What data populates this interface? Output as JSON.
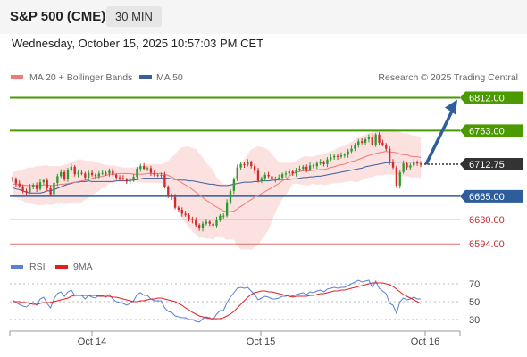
{
  "header": {
    "title": "S&P 500 (CME)",
    "timeframe": "30 MIN"
  },
  "datetime": "Wednesday, October 15, 2025 10:57:03 PM CET",
  "legend": {
    "ma20_label": "MA 20 + Bollinger Bands",
    "ma50_label": "MA 50",
    "credit": "Research © 2025 Trading Central"
  },
  "rsi_legend": {
    "rsi_label": "RSI",
    "ma_label": "9MA"
  },
  "colors": {
    "resistance": "#4a9a00",
    "support": "#2d5d9a",
    "bearish_level": "#e07070",
    "current": "#333333",
    "bull_candle": "#2e9a2e",
    "bear_candle": "#d42a2a",
    "ma20": "#f07a7a",
    "ma50": "#3a5fa0",
    "bollinger": "#fbdcdc",
    "rsi": "#5b7fd6",
    "rsi_ma": "#e02020",
    "arrow": "#2e5f9a"
  },
  "chart_data": [
    {
      "type": "candlestick",
      "x_labels": [
        "Oct 14",
        "Oct 15",
        "Oct 16"
      ],
      "ylim": [
        6585,
        6830
      ],
      "levels": [
        {
          "label": "6812.00",
          "value": 6812,
          "kind": "resistance"
        },
        {
          "label": "6763.00",
          "value": 6763,
          "kind": "resistance"
        },
        {
          "label": "6712.75",
          "value": 6712.75,
          "kind": "current"
        },
        {
          "label": "6665.00",
          "value": 6665,
          "kind": "support"
        },
        {
          "label": "6630.00",
          "value": 6630,
          "kind": "bearish"
        },
        {
          "label": "6594.00",
          "value": 6594,
          "kind": "bearish"
        }
      ],
      "closes": [
        6690,
        6684,
        6680,
        6673,
        6671,
        6679,
        6682,
        6676,
        6686,
        6689,
        6677,
        6668,
        6685,
        6695,
        6701,
        6691,
        6704,
        6709,
        6698,
        6700,
        6699,
        6693,
        6700,
        6697,
        6695,
        6699,
        6700,
        6699,
        6703,
        6697,
        6693,
        6692,
        6690,
        6687,
        6689,
        6694,
        6706,
        6710,
        6706,
        6707,
        6700,
        6697,
        6697,
        6697,
        6679,
        6666,
        6664,
        6648,
        6645,
        6639,
        6637,
        6631,
        6629,
        6622,
        6617,
        6624,
        6627,
        6624,
        6621,
        6630,
        6636,
        6636,
        6656,
        6673,
        6690,
        6708,
        6713,
        6712,
        6716,
        6710,
        6703,
        6688,
        6692,
        6697,
        6695,
        6690,
        6691,
        6693,
        6698,
        6699,
        6702,
        6699,
        6704,
        6706,
        6709,
        6705,
        6711,
        6710,
        6714,
        6716,
        6713,
        6720,
        6723,
        6725,
        6724,
        6726,
        6727,
        6732,
        6736,
        6742,
        6747,
        6745,
        6750,
        6754,
        6742,
        6757,
        6745,
        6742,
        6736,
        6716,
        6708,
        6681,
        6701,
        6714,
        6708,
        6711,
        6716,
        6714,
        6713
      ],
      "ma20": [
        6683,
        6683,
        6682,
        6682,
        6681,
        6681,
        6681,
        6681,
        6681,
        6682,
        6682,
        6681,
        6681,
        6682,
        6683,
        6683,
        6684,
        6685,
        6686,
        6687,
        6688,
        6689,
        6690,
        6692,
        6693,
        6694,
        6695,
        6696,
        6698,
        6698,
        6698,
        6699,
        6699,
        6699,
        6699,
        6698,
        6698,
        6698,
        6698,
        6699,
        6699,
        6699,
        6699,
        6699,
        6698,
        6696,
        6694,
        6691,
        6688,
        6685,
        6682,
        6679,
        6675,
        6671,
        6667,
        6663,
        6659,
        6656,
        6652,
        6649,
        6646,
        6643,
        6642,
        6642,
        6643,
        6646,
        6650,
        6653,
        6657,
        6660,
        6664,
        6666,
        6669,
        6672,
        6675,
        6678,
        6681,
        6684,
        6688,
        6691,
        6695,
        6699,
        6701,
        6702,
        6703,
        6703,
        6703,
        6704,
        6704,
        6705,
        6705,
        6706,
        6708,
        6709,
        6711,
        6712,
        6713,
        6715,
        6717,
        6718,
        6720,
        6722,
        6724,
        6726,
        6727,
        6729,
        6730,
        6731,
        6732,
        6731,
        6731,
        6730,
        6728,
        6727,
        6727,
        6725,
        6724,
        6724,
        6723
      ],
      "bb_upper": [
        6701,
        6702,
        6704,
        6705,
        6707,
        6708,
        6708,
        6710,
        6710,
        6711,
        6711,
        6710,
        6710,
        6710,
        6710,
        6712,
        6714,
        6716,
        6718,
        6720,
        6720,
        6718,
        6718,
        6717,
        6716,
        6715,
        6713,
        6712,
        6711,
        6711,
        6710,
        6709,
        6708,
        6708,
        6708,
        6708,
        6709,
        6710,
        6711,
        6713,
        6713,
        6713,
        6713,
        6713,
        6715,
        6718,
        6723,
        6728,
        6734,
        6738,
        6739,
        6739,
        6737,
        6735,
        6729,
        6723,
        6715,
        6710,
        6704,
        6693,
        6687,
        6683,
        6683,
        6683,
        6686,
        6701,
        6714,
        6720,
        6728,
        6735,
        6737,
        6740,
        6738,
        6737,
        6734,
        6728,
        6721,
        6717,
        6715,
        6715,
        6715,
        6715,
        6718,
        6721,
        6724,
        6725,
        6724,
        6724,
        6726,
        6727,
        6728,
        6730,
        6732,
        6734,
        6737,
        6739,
        6740,
        6743,
        6746,
        6750,
        6753,
        6755,
        6757,
        6759,
        6761,
        6762,
        6764,
        6766,
        6766,
        6765,
        6765,
        6762,
        6761,
        6759,
        6759,
        6757,
        6755,
        6755,
        6754
      ],
      "bb_lower": [
        6664,
        6663,
        6660,
        6658,
        6655,
        6654,
        6653,
        6652,
        6652,
        6652,
        6653,
        6652,
        6653,
        6654,
        6656,
        6653,
        6654,
        6654,
        6654,
        6654,
        6656,
        6660,
        6662,
        6667,
        6670,
        6673,
        6677,
        6680,
        6684,
        6685,
        6686,
        6689,
        6690,
        6689,
        6689,
        6688,
        6686,
        6686,
        6685,
        6685,
        6685,
        6685,
        6685,
        6685,
        6681,
        6674,
        6664,
        6654,
        6642,
        6632,
        6625,
        6619,
        6613,
        6608,
        6605,
        6603,
        6602,
        6602,
        6600,
        6605,
        6605,
        6603,
        6600,
        6601,
        6600,
        6591,
        6586,
        6586,
        6586,
        6585,
        6590,
        6592,
        6600,
        6607,
        6615,
        6628,
        6641,
        6651,
        6661,
        6667,
        6675,
        6683,
        6684,
        6683,
        6682,
        6681,
        6682,
        6684,
        6682,
        6683,
        6682,
        6682,
        6684,
        6684,
        6685,
        6685,
        6686,
        6687,
        6688,
        6686,
        6687,
        6689,
        6691,
        6693,
        6693,
        6696,
        6696,
        6696,
        6698,
        6697,
        6697,
        6698,
        6695,
        6695,
        6695,
        6693,
        6693,
        6693,
        6692
      ],
      "ma50": [
        6678,
        6676,
        6675,
        6673,
        6671,
        6670,
        6670,
        6670,
        6670,
        6671,
        6673,
        6673,
        6675,
        6677,
        6679,
        6681,
        6683,
        6684,
        6686,
        6686,
        6687,
        6687,
        6688,
        6687,
        6687,
        6687,
        6687,
        6687,
        6687,
        6687,
        6688,
        6688,
        6688,
        6688,
        6689,
        6689,
        6690,
        6691,
        6692,
        6692,
        6692,
        6692,
        6692,
        6692,
        6692,
        6692,
        6691,
        6690,
        6690,
        6689,
        6689,
        6688,
        6688,
        6687,
        6686,
        6685,
        6684,
        6683,
        6683,
        6682,
        6681,
        6681,
        6681,
        6682,
        6683,
        6684,
        6685,
        6686,
        6686,
        6686,
        6687,
        6687,
        6688,
        6688,
        6688,
        6689,
        6689,
        6690,
        6690,
        6690,
        6690,
        6691,
        6691,
        6692,
        6693,
        6693,
        6694,
        6694,
        6695,
        6695,
        6696,
        6697,
        6698,
        6699,
        6700,
        6701,
        6702,
        6703,
        6704,
        6705,
        6706,
        6707,
        6709,
        6710,
        6711,
        6712,
        6713,
        6714,
        6715,
        6715,
        6716,
        6716,
        6716,
        6716,
        6716,
        6716,
        6716,
        6716,
        6716
      ]
    },
    {
      "type": "line",
      "title": "RSI",
      "ylim": [
        22,
        76
      ],
      "y_ticks": [
        70,
        50,
        30
      ],
      "series": [
        {
          "name": "RSI",
          "values": [
            52,
            49,
            47,
            45,
            44,
            47,
            49,
            46,
            53,
            55,
            48,
            43,
            53,
            59,
            61,
            56,
            61,
            63,
            57,
            57,
            57,
            53,
            57,
            55,
            54,
            57,
            57,
            55,
            58,
            53,
            50,
            49,
            48,
            46,
            48,
            51,
            58,
            60,
            57,
            57,
            53,
            51,
            51,
            51,
            43,
            39,
            38,
            34,
            33,
            32,
            32,
            30,
            30,
            28,
            27,
            31,
            33,
            32,
            30,
            36,
            40,
            40,
            49,
            55,
            60,
            65,
            66,
            65,
            66,
            62,
            58,
            52,
            54,
            56,
            55,
            53,
            53,
            54,
            56,
            56,
            58,
            56,
            58,
            59,
            60,
            58,
            61,
            60,
            62,
            63,
            61,
            64,
            65,
            66,
            65,
            66,
            66,
            68,
            70,
            72,
            74,
            72,
            73,
            74,
            66,
            73,
            65,
            62,
            59,
            48,
            46,
            37,
            50,
            54,
            52,
            53,
            55,
            53,
            53
          ]
        },
        {
          "name": "9MA",
          "values": [
            50,
            50,
            50,
            49,
            49,
            48,
            47,
            47,
            48,
            49,
            49,
            49,
            50,
            51,
            52,
            53,
            54,
            56,
            57,
            57,
            57,
            57,
            57,
            57,
            57,
            56,
            56,
            56,
            56,
            55,
            55,
            54,
            53,
            52,
            51,
            50,
            50,
            51,
            51,
            52,
            53,
            53,
            54,
            54,
            53,
            52,
            51,
            50,
            48,
            46,
            43,
            41,
            38,
            36,
            34,
            33,
            32,
            31,
            31,
            31,
            31,
            32,
            34,
            36,
            39,
            43,
            47,
            51,
            55,
            58,
            60,
            61,
            62,
            62,
            61,
            61,
            60,
            59,
            58,
            57,
            56,
            55,
            56,
            56,
            56,
            56,
            57,
            57,
            58,
            59,
            59,
            60,
            61,
            62,
            62,
            63,
            63,
            64,
            65,
            66,
            67,
            68,
            69,
            70,
            71,
            71,
            71,
            71,
            70,
            69,
            67,
            64,
            61,
            58,
            56,
            54,
            52,
            50,
            48
          ]
        }
      ]
    }
  ]
}
